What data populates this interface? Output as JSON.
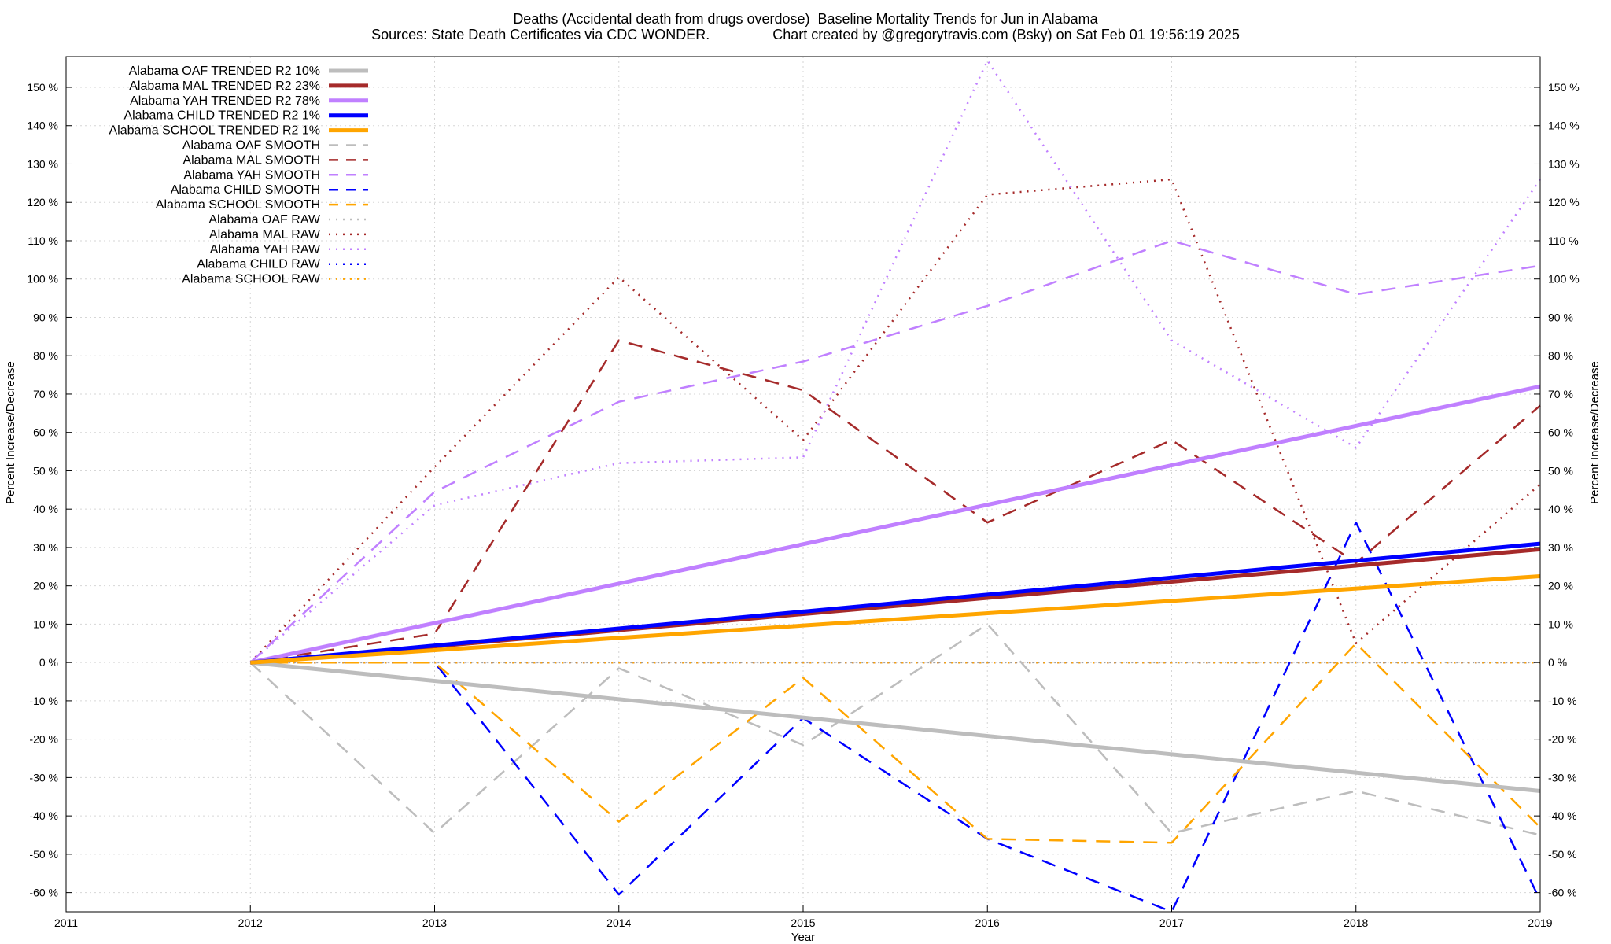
{
  "chart_data": {
    "type": "line",
    "title": "Deaths (Accidental death from drugs overdose)  Baseline Mortality Trends for Jun in Alabama",
    "subtitle": "Sources: State Death Certificates via CDC WONDER.                Chart created by @gregorytravis.com (Bsky) on Sat Feb 01 19:56:19 2025",
    "xlabel": "Year",
    "ylabel": "Percent Increase/Decrease",
    "y2label": "Percent Increase/Decrease",
    "xlim": [
      2011,
      2019
    ],
    "ylim": [
      -65,
      158
    ],
    "x_ticks": [
      2011,
      2012,
      2013,
      2014,
      2015,
      2016,
      2017,
      2018,
      2019
    ],
    "y_ticks": [
      -60,
      -50,
      -40,
      -30,
      -20,
      -10,
      0,
      10,
      20,
      30,
      40,
      50,
      60,
      70,
      80,
      90,
      100,
      110,
      120,
      130,
      140,
      150
    ],
    "y_tick_suffix": " %",
    "grid": true,
    "legend_position": "top-left",
    "colors": {
      "oaf": "#bdbdbd",
      "mal": "#a52a2a",
      "yah": "#c080ff",
      "child": "#0000ff",
      "school": "#ffa500",
      "zero_line": "#a0a0a0"
    },
    "series": [
      {
        "name": "Alabama OAF TRENDED R2  10%",
        "style": "trend",
        "color": "#bdbdbd",
        "x": [
          2012,
          2019
        ],
        "y": [
          0,
          -33.5
        ]
      },
      {
        "name": "Alabama MAL TRENDED R2  23%",
        "style": "trend",
        "color": "#a52a2a",
        "x": [
          2012,
          2019
        ],
        "y": [
          0,
          29.5
        ]
      },
      {
        "name": "Alabama YAH TRENDED R2  78%",
        "style": "trend",
        "color": "#c080ff",
        "x": [
          2012,
          2019
        ],
        "y": [
          0,
          72
        ]
      },
      {
        "name": "Alabama CHILD TRENDED R2   1%",
        "style": "trend",
        "color": "#0000ff",
        "x": [
          2012,
          2019
        ],
        "y": [
          0,
          31
        ]
      },
      {
        "name": "Alabama SCHOOL TRENDED R2   1%",
        "style": "trend",
        "color": "#ffa500",
        "x": [
          2012,
          2019
        ],
        "y": [
          0,
          22.5
        ]
      },
      {
        "name": "Alabama OAF SMOOTH",
        "style": "smooth",
        "color": "#bdbdbd",
        "x": [
          2012,
          2013,
          2014,
          2015,
          2016,
          2017,
          2018,
          2019
        ],
        "y": [
          0,
          -44.5,
          -1.5,
          -21.5,
          10,
          -44.5,
          -33.5,
          -45
        ]
      },
      {
        "name": "Alabama MAL SMOOTH",
        "style": "smooth",
        "color": "#a52a2a",
        "x": [
          2012,
          2013,
          2014,
          2015,
          2016,
          2017,
          2018,
          2019
        ],
        "y": [
          0,
          7.5,
          84,
          71,
          36.5,
          58,
          26,
          67
        ]
      },
      {
        "name": "Alabama YAH SMOOTH",
        "style": "smooth",
        "color": "#c080ff",
        "x": [
          2012,
          2013,
          2014,
          2015,
          2016,
          2017,
          2018,
          2019
        ],
        "y": [
          0,
          44.5,
          68,
          78.5,
          93,
          110,
          96,
          103.5
        ]
      },
      {
        "name": "Alabama CHILD SMOOTH",
        "style": "smooth",
        "color": "#0000ff",
        "x": [
          2012,
          2013,
          2014,
          2015,
          2016,
          2017,
          2018,
          2019
        ],
        "y": [
          0,
          0,
          -60.5,
          -14.5,
          -46,
          -65,
          36.5,
          -62
        ]
      },
      {
        "name": "Alabama SCHOOL SMOOTH",
        "style": "smooth",
        "color": "#ffa500",
        "x": [
          2012,
          2013,
          2014,
          2015,
          2016,
          2017,
          2018,
          2019
        ],
        "y": [
          0,
          0,
          -41.5,
          -4,
          -46,
          -47,
          5,
          -43
        ]
      },
      {
        "name": "Alabama OAF RAW",
        "style": "raw",
        "color": "#bdbdbd",
        "x": [
          2012,
          2019
        ],
        "y": [
          0,
          0
        ]
      },
      {
        "name": "Alabama MAL RAW",
        "style": "raw",
        "color": "#a52a2a",
        "x": [
          2012,
          2013,
          2014,
          2015,
          2016,
          2017,
          2018,
          2019
        ],
        "y": [
          0,
          51,
          100.5,
          58,
          122,
          126,
          5,
          46.5
        ]
      },
      {
        "name": "Alabama YAH RAW",
        "style": "raw",
        "color": "#c080ff",
        "x": [
          2012,
          2013,
          2014,
          2015,
          2016,
          2017,
          2018,
          2019
        ],
        "y": [
          0,
          41,
          52,
          53.5,
          157,
          84,
          56,
          126
        ]
      },
      {
        "name": "Alabama CHILD RAW",
        "style": "raw",
        "color": "#0000ff",
        "x": [
          2012,
          2019
        ],
        "y": [
          0,
          0
        ]
      },
      {
        "name": "Alabama SCHOOL RAW",
        "style": "raw",
        "color": "#ffa500",
        "x": [
          2012,
          2019
        ],
        "y": [
          0,
          0
        ]
      }
    ]
  }
}
